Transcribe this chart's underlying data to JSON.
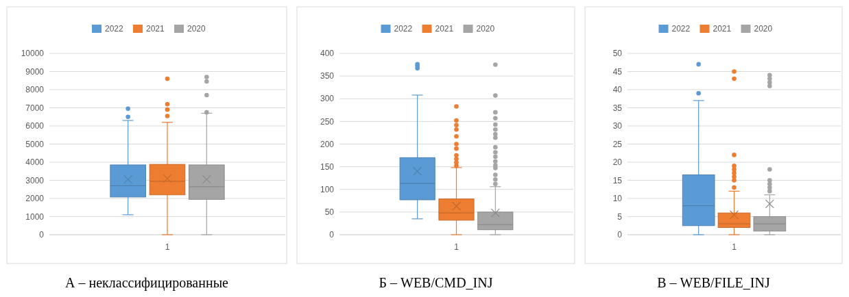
{
  "chart_data": [
    {
      "type": "box",
      "title": "А – неклассифицированные",
      "categories": [
        "1"
      ],
      "ylim": [
        0,
        10000
      ],
      "yticks": [
        0,
        1000,
        2000,
        3000,
        4000,
        5000,
        6000,
        7000,
        8000,
        9000,
        10000
      ],
      "grid": "y",
      "legend": "top",
      "series": [
        {
          "name": "2022",
          "color": "#5b9bd5",
          "boxes": [
            {
              "low": 1100,
              "q1": 2080,
              "median": 2700,
              "q3": 3850,
              "high": 6300,
              "mean": 3050,
              "outliers": [
                6500,
                6950
              ]
            }
          ]
        },
        {
          "name": "2021",
          "color": "#ed7d31",
          "boxes": [
            {
              "low": 0,
              "q1": 2200,
              "median": 2950,
              "q3": 3880,
              "high": 6200,
              "mean": 3100,
              "outliers": [
                6550,
                6900,
                7200,
                8600
              ]
            }
          ]
        },
        {
          "name": "2020",
          "color": "#a5a5a5",
          "boxes": [
            {
              "low": 0,
              "q1": 1950,
              "median": 2650,
              "q3": 3850,
              "high": 6700,
              "mean": 3050,
              "outliers": [
                6750,
                7700,
                8450,
                8700
              ]
            }
          ]
        }
      ]
    },
    {
      "type": "box",
      "title": "Б – WEB/CMD_INJ",
      "categories": [
        "1"
      ],
      "ylim": [
        0,
        400
      ],
      "yticks": [
        0,
        50,
        100,
        150,
        200,
        250,
        300,
        350,
        400
      ],
      "grid": "y",
      "legend": "top",
      "series": [
        {
          "name": "2022",
          "color": "#5b9bd5",
          "boxes": [
            {
              "low": 35,
              "q1": 77,
              "median": 113,
              "q3": 170,
              "high": 308,
              "mean": 140,
              "outliers": [
                367,
                372,
                376
              ]
            }
          ]
        },
        {
          "name": "2021",
          "color": "#ed7d31",
          "boxes": [
            {
              "low": 0,
              "q1": 32,
              "median": 48,
              "q3": 79,
              "high": 148,
              "mean": 63,
              "outliers": [
                152,
                159,
                167,
                175,
                190,
                200,
                217,
                232,
                242,
                252,
                283
              ]
            }
          ]
        },
        {
          "name": "2020",
          "color": "#a5a5a5",
          "boxes": [
            {
              "low": 0,
              "q1": 11,
              "median": 22,
              "q3": 50,
              "high": 106,
              "mean": 48,
              "outliers": [
                112,
                122,
                132,
                147,
                153,
                162,
                172,
                182,
                193,
                214,
                222,
                232,
                243,
                257,
                270,
                307,
                375
              ]
            }
          ]
        }
      ]
    },
    {
      "type": "box",
      "title": "В – WEB/FILE_INJ",
      "categories": [
        "1"
      ],
      "ylim": [
        0,
        50
      ],
      "yticks": [
        0,
        5,
        10,
        15,
        20,
        25,
        30,
        35,
        40,
        45,
        50
      ],
      "grid": "y",
      "legend": "top",
      "series": [
        {
          "name": "2022",
          "color": "#5b9bd5",
          "boxes": [
            {
              "low": 0,
              "q1": 2.5,
              "median": 8,
              "q3": 16.5,
              "high": 37,
              "outliers": [
                39,
                47
              ]
            }
          ]
        },
        {
          "name": "2021",
          "color": "#ed7d31",
          "boxes": [
            {
              "low": 0,
              "q1": 2,
              "median": 3,
              "q3": 6,
              "high": 12,
              "mean": 5.5,
              "outliers": [
                13,
                15,
                16,
                17,
                18,
                19,
                22,
                43,
                45
              ]
            }
          ]
        },
        {
          "name": "2020",
          "color": "#a5a5a5",
          "boxes": [
            {
              "low": 0,
              "q1": 1,
              "median": 3,
              "q3": 5,
              "high": 11,
              "mean": 8.5,
              "outliers": [
                12,
                13,
                14,
                15,
                18,
                41,
                42,
                43,
                44
              ]
            }
          ]
        }
      ]
    }
  ]
}
